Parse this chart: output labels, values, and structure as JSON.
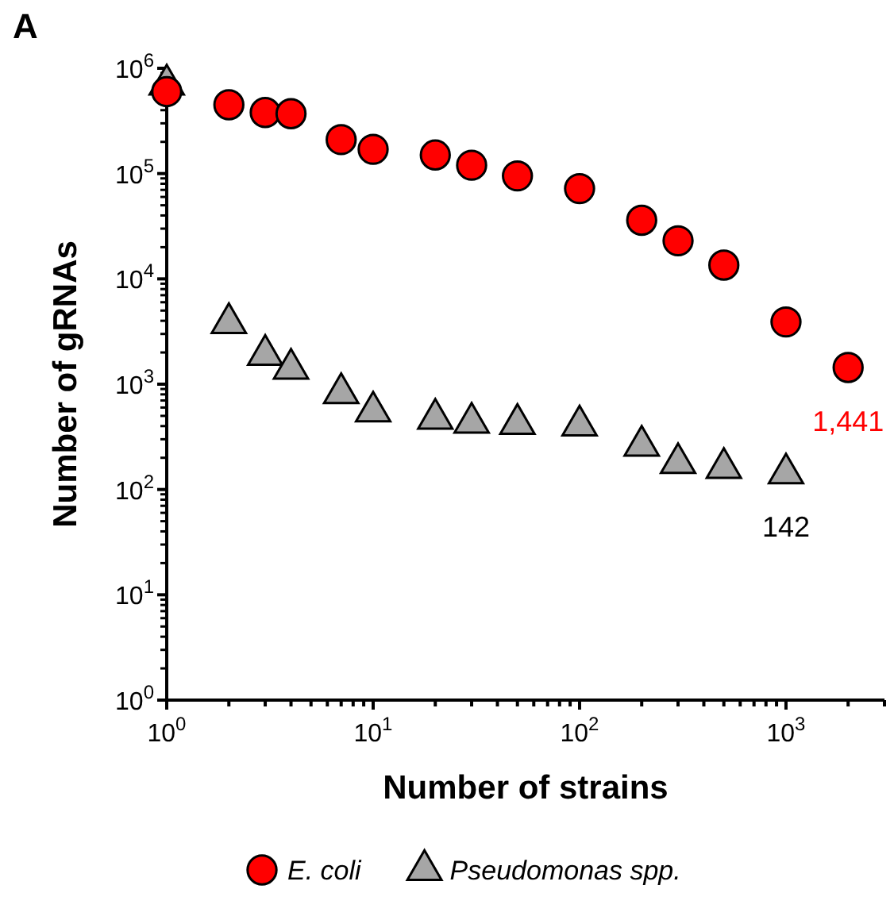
{
  "chart_data": {
    "type": "scatter",
    "xlabel": "Number of strains",
    "ylabel": "Number of gRNAs",
    "log": "xy",
    "grid": false,
    "legend": "bottom",
    "x": [
      1,
      2,
      3,
      4,
      7,
      10,
      20,
      30,
      50,
      100,
      200,
      300,
      500,
      1000,
      2000
    ],
    "series": [
      {
        "name": "E. coli",
        "color": "#ff0000",
        "marker": "circle",
        "values": [
          600000,
          450000,
          380000,
          370000,
          210000,
          170000,
          150000,
          120000,
          95000,
          72000,
          36000,
          23000,
          13500,
          3900,
          1441
        ]
      },
      {
        "name": "Pseudomonas spp.",
        "color": "#a6a6a6",
        "marker": "triangle",
        "x": [
          1,
          2,
          3,
          4,
          7,
          10,
          20,
          30,
          50,
          100,
          200,
          300,
          500,
          1000
        ],
        "values": [
          700000,
          3800,
          1900,
          1400,
          820,
          550,
          470,
          430,
          420,
          405,
          260,
          178,
          160,
          142
        ]
      }
    ],
    "xlim": [
      1,
      3000
    ],
    "ylim": [
      1,
      1000000
    ],
    "xticks": [
      {
        "value": 1,
        "label": "10$^{0}$"
      },
      {
        "value": 2,
        "label": null
      },
      {
        "value": 3,
        "label": null
      },
      {
        "value": 4,
        "label": null
      },
      {
        "value": 5,
        "label": null
      },
      {
        "value": 6,
        "label": null
      },
      {
        "value": 7,
        "label": null
      },
      {
        "value": 8,
        "label": null
      },
      {
        "value": 9,
        "label": null
      },
      {
        "value": 10,
        "label": "10$^{1}$"
      },
      {
        "value": 20,
        "label": null
      },
      {
        "value": 30,
        "label": null
      },
      {
        "value": 40,
        "label": null
      },
      {
        "value": 50,
        "label": null
      },
      {
        "value": 60,
        "label": null
      },
      {
        "value": 70,
        "label": null
      },
      {
        "value": 80,
        "label": null
      },
      {
        "value": 90,
        "label": null
      },
      {
        "value": 100,
        "label": "10$^{2}$"
      },
      {
        "value": 200,
        "label": null
      },
      {
        "value": 300,
        "label": null
      },
      {
        "value": 400,
        "label": null
      },
      {
        "value": 500,
        "label": null
      },
      {
        "value": 600,
        "label": null
      },
      {
        "value": 700,
        "label": null
      },
      {
        "value": 800,
        "label": null
      },
      {
        "value": 900,
        "label": null
      },
      {
        "value": 1000,
        "label": "10$^{3}$"
      },
      {
        "value": 2000,
        "label": null
      },
      {
        "value": 3000,
        "label": null
      }
    ],
    "yticks": [
      {
        "value": 1,
        "label": "10$^{0}$"
      },
      {
        "value": 10,
        "label": "10$^{1}$"
      },
      {
        "value": 100,
        "label": "10$^{2}$"
      },
      {
        "value": 1000,
        "label": "10$^{3}$"
      },
      {
        "value": 10000,
        "label": "10$^{4}$"
      },
      {
        "value": 100000,
        "label": "10$^{5}$"
      },
      {
        "value": 1000000,
        "label": "10$^{6}$"
      }
    ],
    "annotations": [
      "A",
      {
        "text": "1,441",
        "x": 2000,
        "y": 1441
      },
      {
        "text": "142",
        "x": 1000,
        "y": 142
      }
    ]
  }
}
